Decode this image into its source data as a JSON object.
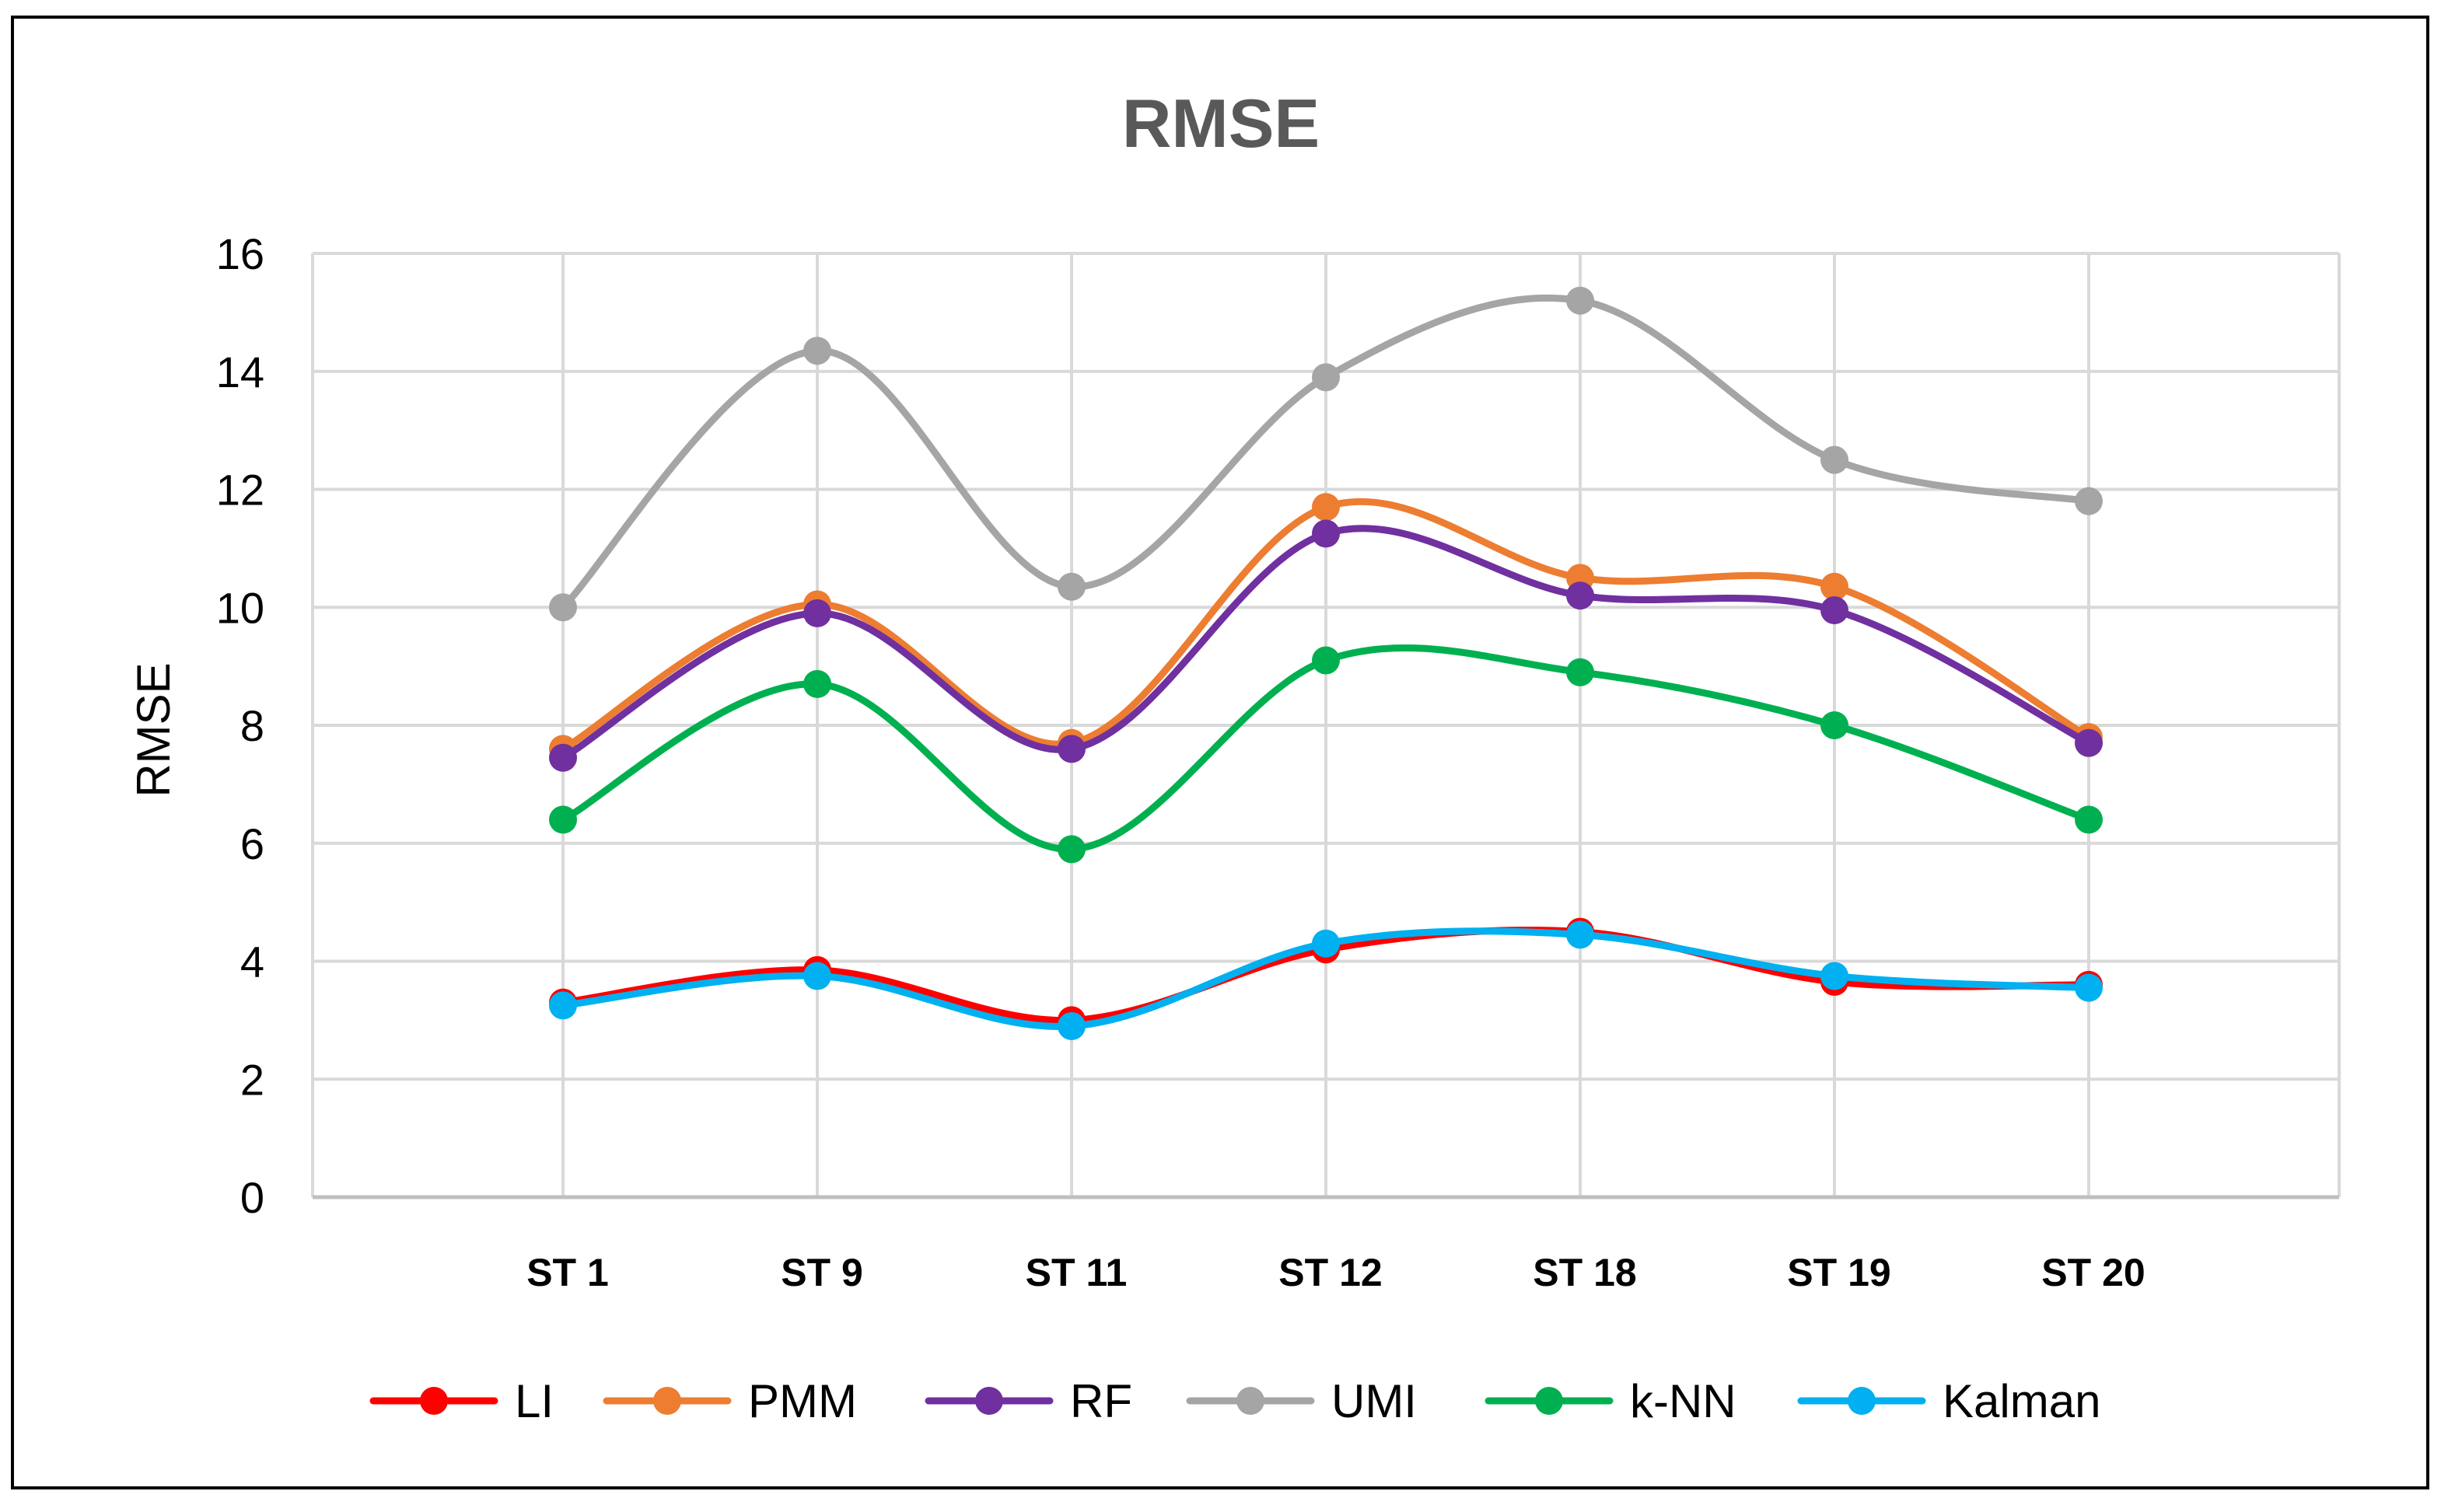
{
  "chart_data": {
    "type": "line",
    "title": "RMSE",
    "xlabel": "",
    "ylabel": "RMSE",
    "ylim": [
      0,
      16
    ],
    "yticks": [
      0,
      2,
      4,
      6,
      8,
      10,
      12,
      14,
      16
    ],
    "grid": true,
    "smooth": true,
    "legend_position": "bottom",
    "categories": [
      "ST 1",
      "ST 9",
      "ST 11",
      "ST 12",
      "ST 18",
      "ST 19",
      "ST 20"
    ],
    "series": [
      {
        "name": "LI",
        "color": "#FF0000",
        "values": [
          3.3,
          3.85,
          3.0,
          4.2,
          4.5,
          3.65,
          3.6
        ]
      },
      {
        "name": "PMM",
        "color": "#ED7D31",
        "values": [
          7.6,
          10.05,
          7.7,
          11.7,
          10.5,
          10.35,
          7.8
        ]
      },
      {
        "name": "RF",
        "color": "#7030A0",
        "values": [
          7.45,
          9.9,
          7.6,
          11.25,
          10.2,
          9.95,
          7.7
        ]
      },
      {
        "name": "UMI",
        "color": "#A5A5A5",
        "values": [
          10.0,
          14.35,
          10.35,
          13.9,
          15.2,
          12.5,
          11.8
        ]
      },
      {
        "name": "k-NN",
        "color": "#00B050",
        "values": [
          6.4,
          8.7,
          5.9,
          9.1,
          8.9,
          8.0,
          6.4
        ]
      },
      {
        "name": "Kalman",
        "color": "#00B0F0",
        "values": [
          3.25,
          3.75,
          2.9,
          4.3,
          4.45,
          3.75,
          3.55
        ]
      }
    ]
  }
}
